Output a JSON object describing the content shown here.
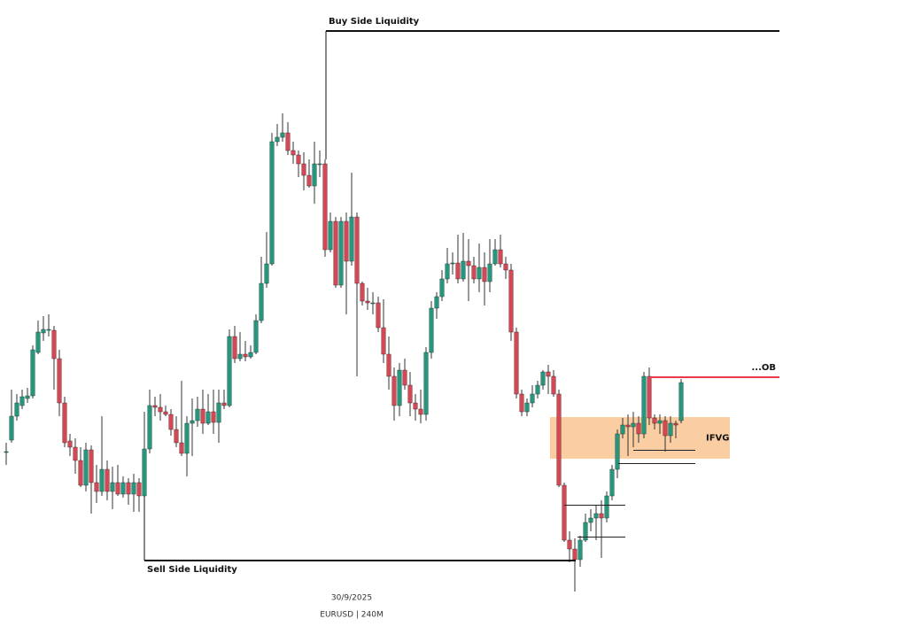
{
  "chart_data": {
    "type": "candlestick",
    "ylim": [
      0,
      700
    ],
    "colors": {
      "up": "#1f9a7e",
      "down": "#dd4452",
      "wick": "#333333"
    },
    "open": [
      190,
      203,
      230,
      242,
      250,
      253,
      302,
      324,
      328,
      327,
      295,
      245,
      202,
      195,
      180,
      152,
      192,
      155,
      145,
      170,
      145,
      155,
      142,
      155,
      142,
      155,
      140,
      193,
      242,
      240,
      235,
      232,
      215,
      200,
      188,
      222,
      225,
      238,
      222,
      235,
      223,
      245,
      242,
      320,
      295,
      300,
      297,
      302,
      338,
      380,
      402,
      540,
      545,
      550,
      530,
      525,
      515,
      502,
      490,
      515,
      515,
      418,
      450,
      378,
      450,
      405,
      455,
      380,
      360,
      358,
      358,
      330,
      300,
      275,
      242,
      282,
      265,
      245,
      238,
      232,
      302,
      352,
      365,
      385,
      402,
      403,
      385,
      405,
      400,
      385,
      398,
      382,
      402,
      418,
      402,
      395,
      325,
      255,
      235,
      245,
      255,
      265,
      280,
      275,
      255,
      152,
      90,
      80,
      68,
      90,
      110,
      115,
      120,
      115,
      140,
      170,
      210,
      220,
      218,
      222,
      210,
      275,
      228,
      222,
      225,
      208,
      222,
      225
    ],
    "high": [
      200,
      260,
      255,
      260,
      262,
      310,
      338,
      343,
      345,
      332,
      305,
      252,
      210,
      205,
      195,
      200,
      197,
      175,
      230,
      180,
      173,
      175,
      162,
      160,
      165,
      160,
      235,
      260,
      252,
      255,
      242,
      238,
      230,
      270,
      230,
      250,
      252,
      260,
      255,
      260,
      260,
      260,
      328,
      332,
      325,
      315,
      310,
      345,
      410,
      438,
      550,
      560,
      572,
      562,
      540,
      530,
      528,
      520,
      540,
      530,
      520,
      460,
      455,
      455,
      460,
      505,
      460,
      382,
      375,
      370,
      365,
      362,
      320,
      285,
      290,
      295,
      280,
      255,
      260,
      308,
      360,
      370,
      395,
      420,
      415,
      435,
      437,
      430,
      410,
      425,
      415,
      430,
      430,
      435,
      410,
      402,
      330,
      260,
      250,
      265,
      270,
      282,
      288,
      282,
      260,
      155,
      100,
      92,
      95,
      120,
      125,
      130,
      135,
      145,
      175,
      215,
      228,
      232,
      235,
      230,
      280,
      285,
      232,
      232,
      230,
      230,
      225,
      272
    ],
    "low": [
      175,
      200,
      225,
      238,
      245,
      250,
      300,
      315,
      320,
      260,
      230,
      195,
      185,
      165,
      150,
      145,
      120,
      132,
      140,
      135,
      125,
      140,
      138,
      130,
      122,
      122,
      110,
      188,
      230,
      225,
      230,
      208,
      195,
      185,
      162,
      185,
      218,
      210,
      220,
      210,
      200,
      238,
      240,
      290,
      292,
      292,
      295,
      300,
      335,
      375,
      400,
      535,
      540,
      525,
      515,
      500,
      485,
      488,
      470,
      500,
      410,
      415,
      375,
      375,
      345,
      400,
      275,
      355,
      350,
      345,
      325,
      290,
      260,
      225,
      230,
      260,
      230,
      225,
      222,
      225,
      295,
      340,
      360,
      380,
      390,
      380,
      382,
      360,
      380,
      370,
      355,
      370,
      400,
      398,
      385,
      315,
      250,
      230,
      230,
      240,
      250,
      260,
      255,
      252,
      150,
      88,
      65,
      32,
      60,
      88,
      100,
      90,
      70,
      110,
      135,
      160,
      205,
      185,
      195,
      200,
      205,
      220,
      215,
      210,
      190,
      200,
      205,
      222
    ],
    "close": [
      190,
      230,
      245,
      252,
      253,
      305,
      325,
      328,
      328,
      295,
      245,
      200,
      195,
      180,
      152,
      192,
      155,
      145,
      170,
      145,
      155,
      142,
      155,
      142,
      155,
      140,
      193,
      242,
      240,
      235,
      232,
      215,
      200,
      188,
      222,
      225,
      238,
      222,
      235,
      223,
      245,
      242,
      320,
      295,
      300,
      297,
      302,
      338,
      380,
      402,
      540,
      545,
      550,
      530,
      525,
      515,
      502,
      490,
      515,
      515,
      418,
      450,
      378,
      450,
      405,
      455,
      380,
      360,
      358,
      358,
      330,
      300,
      275,
      242,
      282,
      265,
      245,
      238,
      232,
      302,
      352,
      365,
      385,
      402,
      403,
      385,
      405,
      400,
      385,
      398,
      382,
      402,
      418,
      402,
      395,
      325,
      255,
      235,
      245,
      255,
      265,
      280,
      275,
      255,
      152,
      90,
      80,
      68,
      90,
      110,
      115,
      120,
      115,
      140,
      170,
      210,
      220,
      218,
      222,
      210,
      275,
      228,
      222,
      225,
      208,
      222,
      220,
      268
    ],
    "levels": [
      {
        "label": "Buy Side Liquidity",
        "value": 665,
        "color": "#111111"
      },
      {
        "label": "Sell Side Liquidity",
        "value": 67,
        "color": "#111111"
      },
      {
        "label": "...OB",
        "value": 274,
        "color": "#e8394d"
      }
    ],
    "zones": [
      {
        "label": "IFVG",
        "low": 182,
        "high": 229,
        "color": "#f9c592"
      }
    ],
    "footer": [
      "30/9/2025",
      "EURUSD | 240M"
    ]
  }
}
